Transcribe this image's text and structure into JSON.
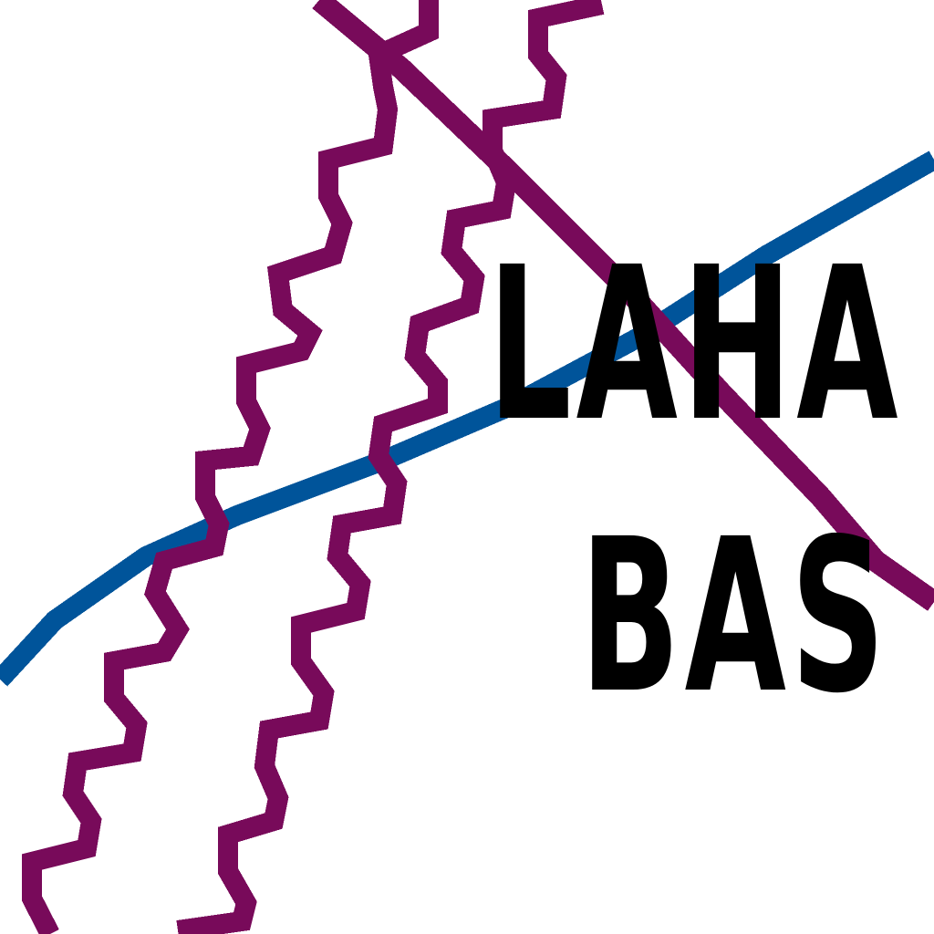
{
  "map": {
    "background": "#ffffff",
    "colors": {
      "route_purple": "#780a5a",
      "route_blue": "#00549a",
      "label": "#000000"
    },
    "routes": [
      {
        "name": "blue-line",
        "color": "#00549a",
        "style": "solid"
      },
      {
        "name": "purple-straight-line",
        "color": "#780a5a",
        "style": "solid"
      },
      {
        "name": "purple-wavy-line-left",
        "color": "#780a5a",
        "style": "wavy"
      },
      {
        "name": "purple-wavy-line-right",
        "color": "#780a5a",
        "style": "wavy"
      }
    ],
    "label": {
      "line1": "LAHA",
      "line2": "BAS"
    }
  }
}
